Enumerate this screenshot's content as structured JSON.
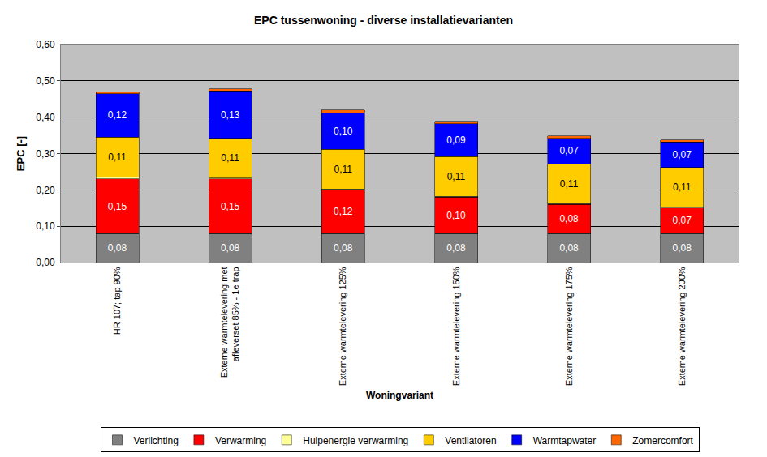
{
  "chart_data": {
    "type": "bar",
    "stacked": true,
    "data_labels": true,
    "grid": true,
    "legend": "bottom",
    "title": "EPC tussenwoning - diverse installatievarianten",
    "x_label": "Woningvariant",
    "y_label": "EPC [-]",
    "categories": [
      "HR 107; tap 90%",
      "Externe warmtelevering met afleverset 85% - 1e trap",
      "Externe warmtelevering 125%",
      "Externe warmtelevering 150%",
      "Externe warmtelevering 175%",
      "Externe warmtelevering 200%"
    ],
    "series": [
      {
        "name": "Verlichting",
        "color": "#808080",
        "values": [
          0.08,
          0.08,
          0.08,
          0.08,
          0.08,
          0.08
        ],
        "value_labels": [
          "0,08",
          "0,08",
          "0,08",
          "0,08",
          "0,08",
          "0,08"
        ]
      },
      {
        "name": "Verwarming",
        "color": "#ff0000",
        "values": [
          0.15,
          0.15,
          0.12,
          0.1,
          0.08,
          0.07
        ],
        "value_labels": [
          "0,15",
          "0,15",
          "0,12",
          "0,10",
          "0,08",
          "0,07"
        ]
      },
      {
        "name": "Hulpenergie verwarming",
        "color": "#ffff99",
        "values": [
          0.005,
          0.002,
          0.002,
          0.002,
          0.002,
          0.002
        ],
        "value_labels": [
          null,
          null,
          null,
          null,
          null,
          null
        ]
      },
      {
        "name": "Ventilatoren",
        "color": "#ffcc00",
        "values": [
          0.11,
          0.11,
          0.11,
          0.11,
          0.11,
          0.11
        ],
        "value_labels": [
          "0,11",
          "0,11",
          "0,11",
          "0,11",
          "0,11",
          "0,11"
        ]
      },
      {
        "name": "Warmtapwater",
        "color": "#0000ff",
        "values": [
          0.12,
          0.13,
          0.1,
          0.09,
          0.07,
          0.07
        ],
        "value_labels": [
          "0,12",
          "0,13",
          "0,10",
          "0,09",
          "0,07",
          "0,07"
        ]
      },
      {
        "name": "Zomercomfort",
        "color": "#ff6600",
        "values": [
          0.005,
          0.006,
          0.008,
          0.007,
          0.006,
          0.005
        ],
        "value_labels": [
          null,
          null,
          null,
          null,
          null,
          null
        ]
      }
    ],
    "ylim": [
      0,
      0.6
    ],
    "yticks": [
      {
        "value": 0,
        "label": "0,00"
      },
      {
        "value": 0.1,
        "label": "0,10"
      },
      {
        "value": 0.2,
        "label": "0,20"
      },
      {
        "value": 0.3,
        "label": "0,30"
      },
      {
        "value": 0.4,
        "label": "0,40"
      },
      {
        "value": 0.5,
        "label": "0,50"
      },
      {
        "value": 0.6,
        "label": "0,60"
      }
    ]
  }
}
